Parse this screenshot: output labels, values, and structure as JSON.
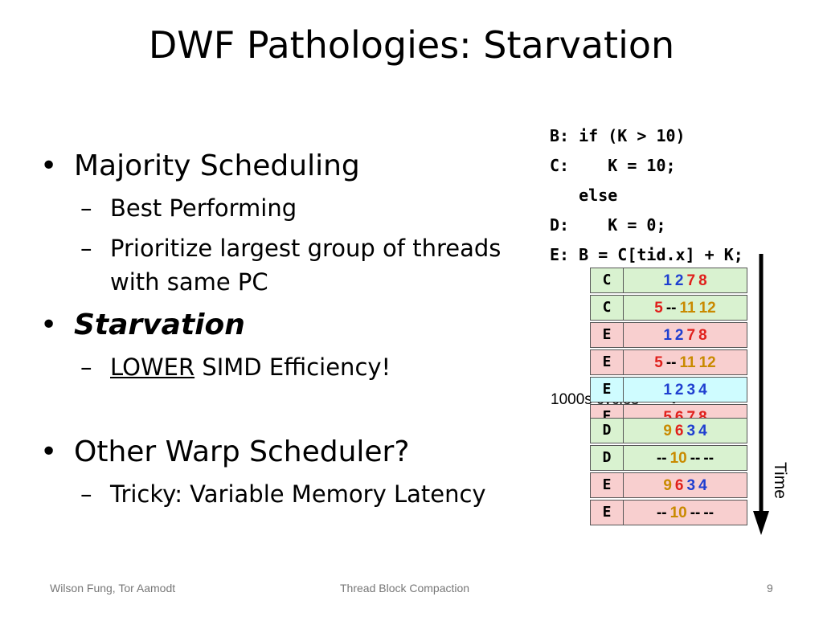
{
  "slide": {
    "title": "DWF Pathologies:  Starvation",
    "bullets": [
      {
        "text": "Majority Scheduling"
      },
      {
        "text": "Best Performing"
      },
      {
        "text": "Prioritize largest group of threads with same PC"
      },
      {
        "text": "Starvation"
      },
      {
        "underlined": "LOWER",
        "rest": " SIMD Efficiency!"
      },
      {
        "text": "Other Warp Scheduler?"
      },
      {
        "text": "Tricky: Variable Memory Latency"
      }
    ],
    "bullet_glyph": "•",
    "dash_glyph": "–",
    "code": [
      "B: if (K > 10)",
      "C:    K = 10;",
      "   else",
      "D:    K = 0;",
      "E: B = C[tid.x] + K;"
    ],
    "table": {
      "rows": [
        {
          "label": "C",
          "color": "green",
          "values": [
            {
              "v": "1",
              "c": "blue"
            },
            {
              "v": "2",
              "c": "blue"
            },
            {
              "v": "7",
              "c": "red"
            },
            {
              "v": "8",
              "c": "red"
            }
          ]
        },
        {
          "label": "C",
          "color": "green",
          "values": [
            {
              "v": "5",
              "c": "red"
            },
            {
              "v": "--",
              "c": "black"
            },
            {
              "v": "11",
              "c": "orange"
            },
            {
              "v": "12",
              "c": "orange"
            }
          ]
        },
        {
          "label": "E",
          "color": "pink",
          "values": [
            {
              "v": "1",
              "c": "blue"
            },
            {
              "v": "2",
              "c": "blue"
            },
            {
              "v": "7",
              "c": "red"
            },
            {
              "v": "8",
              "c": "red"
            }
          ]
        },
        {
          "label": "E",
          "color": "pink",
          "values": [
            {
              "v": "5",
              "c": "red"
            },
            {
              "v": "--",
              "c": "black"
            },
            {
              "v": "11",
              "c": "orange"
            },
            {
              "v": "12",
              "c": "orange"
            }
          ]
        },
        {
          "label": "E",
          "color": "cyan",
          "values": [
            {
              "v": "1",
              "c": "blue"
            },
            {
              "v": "2",
              "c": "blue"
            },
            {
              "v": "3",
              "c": "blue"
            },
            {
              "v": "4",
              "c": "blue"
            }
          ]
        },
        {
          "label": "E",
          "color": "pink",
          "values": [
            {
              "v": "5",
              "c": "red"
            },
            {
              "v": "6",
              "c": "red"
            },
            {
              "v": "7",
              "c": "red"
            },
            {
              "v": "8",
              "c": "red"
            }
          ]
        },
        {
          "label": "D",
          "color": "green",
          "values": [
            {
              "v": "9",
              "c": "orange"
            },
            {
              "v": "6",
              "c": "red"
            },
            {
              "v": "3",
              "c": "blue"
            },
            {
              "v": "4",
              "c": "blue"
            }
          ]
        },
        {
          "label": "D",
          "color": "green",
          "values": [
            {
              "v": "--",
              "c": "black"
            },
            {
              "v": "10",
              "c": "orange"
            },
            {
              "v": "--",
              "c": "black"
            },
            {
              "v": "--",
              "c": "black"
            }
          ]
        },
        {
          "label": "E",
          "color": "pink",
          "values": [
            {
              "v": "9",
              "c": "orange"
            },
            {
              "v": "6",
              "c": "red"
            },
            {
              "v": "3",
              "c": "blue"
            },
            {
              "v": "4",
              "c": "blue"
            }
          ]
        },
        {
          "label": "E",
          "color": "pink",
          "values": [
            {
              "v": "--",
              "c": "black"
            },
            {
              "v": "10",
              "c": "orange"
            },
            {
              "v": "--",
              "c": "black"
            },
            {
              "v": "--",
              "c": "black"
            }
          ]
        }
      ],
      "cycles_label": "1000s cycles",
      "time_label": "Time"
    },
    "footer": {
      "authors": "Wilson Fung, Tor Aamodt",
      "center": "Thread Block Compaction",
      "page": "9"
    }
  }
}
